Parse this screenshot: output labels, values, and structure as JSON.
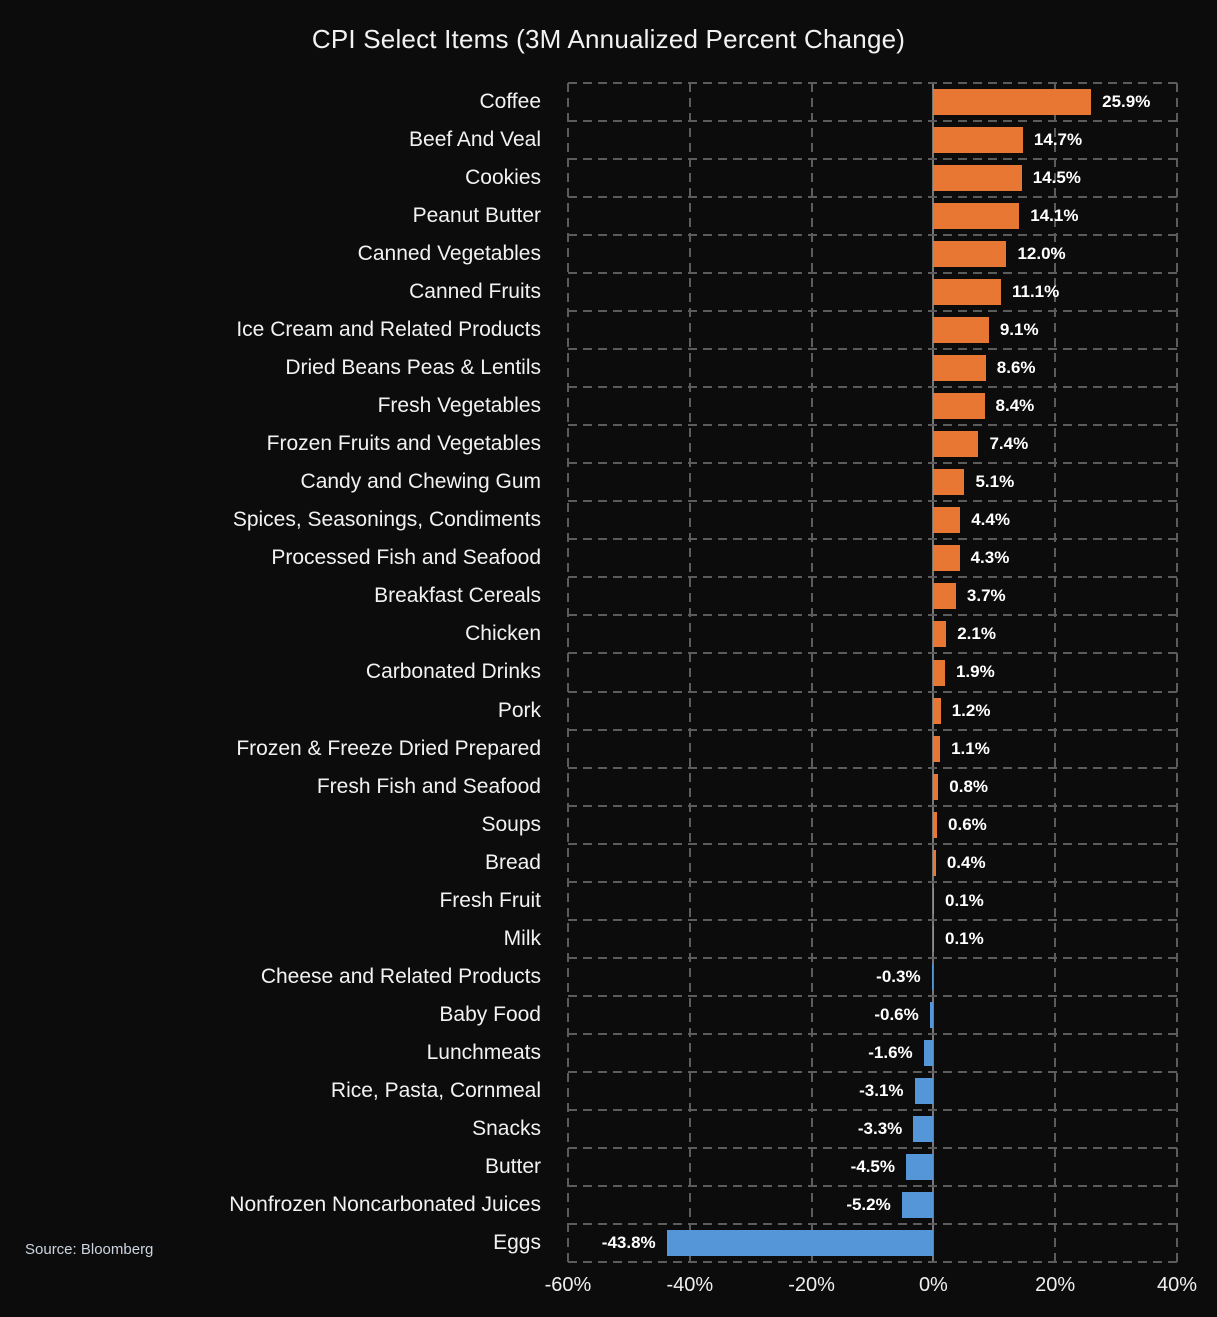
{
  "title": "CPI Select Items (3M Annualized Percent Change)",
  "source": "Source: Bloomberg",
  "colors": {
    "background": "#0c0c0c",
    "positive_bar": "#E87733",
    "negative_bar": "#5496D8",
    "grid_dashed": "#5c5c5c",
    "zero_axis": "#787878",
    "title_text": "#f2f2f2",
    "value_text": "#ffffff"
  },
  "chart_data": {
    "type": "bar",
    "orientation": "horizontal",
    "title": "CPI Select Items (3M Annualized Percent Change)",
    "xlabel": "",
    "ylabel": "",
    "xlim": [
      -60,
      40
    ],
    "grid": "dashed",
    "legend": "none",
    "x_tick_values": [
      -60,
      -40,
      -20,
      0,
      20,
      40
    ],
    "x_tick_labels": [
      "-60%",
      "-40%",
      "-20%",
      "0%",
      "20%",
      "40%"
    ],
    "categories": [
      "Coffee",
      "Beef And Veal",
      "Cookies",
      "Peanut Butter",
      "Canned Vegetables",
      "Canned Fruits",
      "Ice Cream and Related Products",
      "Dried Beans Peas & Lentils",
      "Fresh Vegetables",
      "Frozen Fruits and Vegetables",
      "Candy and Chewing Gum",
      "Spices, Seasonings, Condiments",
      "Processed Fish and Seafood",
      "Breakfast Cereals",
      "Chicken",
      "Carbonated Drinks",
      "Pork",
      "Frozen & Freeze Dried Prepared",
      "Fresh Fish and Seafood",
      "Soups",
      "Bread",
      "Fresh Fruit",
      "Milk",
      "Cheese and Related Products",
      "Baby Food",
      "Lunchmeats",
      "Rice, Pasta, Cornmeal",
      "Snacks",
      "Butter",
      "Nonfrozen Noncarbonated Juices",
      "Eggs"
    ],
    "values": [
      25.9,
      14.7,
      14.5,
      14.1,
      12.0,
      11.1,
      9.1,
      8.6,
      8.4,
      7.4,
      5.1,
      4.4,
      4.3,
      3.7,
      2.1,
      1.9,
      1.2,
      1.1,
      0.8,
      0.6,
      0.4,
      0.1,
      0.1,
      -0.3,
      -0.6,
      -1.6,
      -3.1,
      -3.3,
      -4.5,
      -5.2,
      -43.8
    ],
    "value_labels": [
      "25.9%",
      "14.7%",
      "14.5%",
      "14.1%",
      "12.0%",
      "11.1%",
      "9.1%",
      "8.6%",
      "8.4%",
      "7.4%",
      "5.1%",
      "4.4%",
      "4.3%",
      "3.7%",
      "2.1%",
      "1.9%",
      "1.2%",
      "1.1%",
      "0.8%",
      "0.6%",
      "0.4%",
      "0.1%",
      "0.1%",
      "-0.3%",
      "-0.6%",
      "-1.6%",
      "-3.1%",
      "-3.3%",
      "-4.5%",
      "-5.2%",
      "-43.8%"
    ],
    "source": "Source: Bloomberg"
  }
}
